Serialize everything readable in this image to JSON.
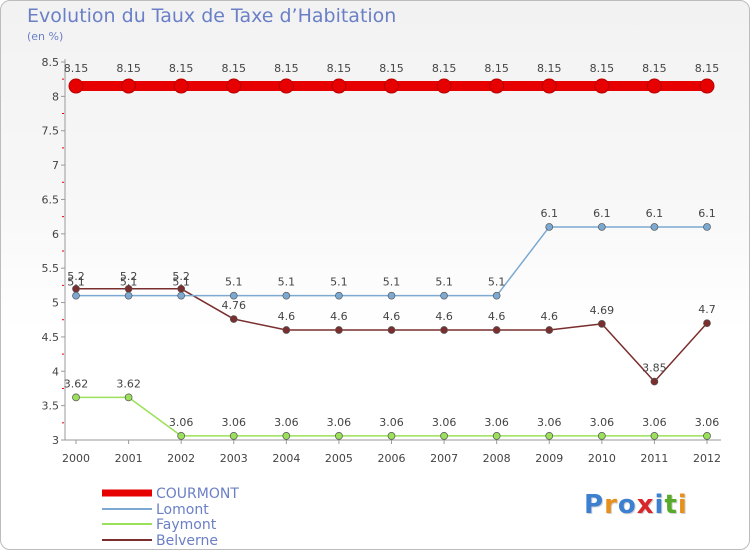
{
  "title": "Evolution du Taux de Taxe d’Habitation",
  "subtitle": "(en %)",
  "logo": {
    "text": "Proxiti",
    "letters": [
      "P",
      "r",
      "o",
      "x",
      "i",
      "t",
      "i"
    ],
    "colors": [
      "#3d7fd0",
      "#e8901c",
      "#3d7fd0",
      "#d8262a",
      "#3d7fd0",
      "#57aa2a",
      "#e8901c"
    ]
  },
  "chart_data": {
    "type": "line",
    "title": "Evolution du Taux de Taxe d’Habitation",
    "ylabel": "(en %)",
    "xlabel": "",
    "x": [
      "2000",
      "2001",
      "2002",
      "2003",
      "2004",
      "2005",
      "2006",
      "2007",
      "2008",
      "2009",
      "2010",
      "2011",
      "2012"
    ],
    "ylim": [
      3,
      8.5
    ],
    "yticks": [
      "3",
      "3.5",
      "4",
      "4.5",
      "5",
      "5.5",
      "6",
      "6.5",
      "7",
      "7.5",
      "8",
      "8.5"
    ],
    "grid": false,
    "legend_position": "bottom-left",
    "series": [
      {
        "name": "COURMONT",
        "color": "#e60000",
        "values": [
          8.15,
          8.15,
          8.15,
          8.15,
          8.15,
          8.15,
          8.15,
          8.15,
          8.15,
          8.15,
          8.15,
          8.15,
          8.15
        ],
        "labels": [
          "8.15",
          "8.15",
          "8.15",
          "8.15",
          "8.15",
          "8.15",
          "8.15",
          "8.15",
          "8.15",
          "8.15",
          "8.15",
          "8.15",
          "8.15"
        ]
      },
      {
        "name": "Lomont",
        "color": "#7ba9d2",
        "values": [
          5.1,
          5.1,
          5.1,
          5.1,
          5.1,
          5.1,
          5.1,
          5.1,
          5.1,
          6.1,
          6.1,
          6.1,
          6.1
        ],
        "labels": [
          "5.1",
          "5.1",
          "5.1",
          "5.1",
          "5.1",
          "5.1",
          "5.1",
          "5.1",
          "5.1",
          "6.1",
          "6.1",
          "6.1",
          "6.1"
        ]
      },
      {
        "name": "Faymont",
        "color": "#9be05a",
        "values": [
          3.62,
          3.62,
          3.06,
          3.06,
          3.06,
          3.06,
          3.06,
          3.06,
          3.06,
          3.06,
          3.06,
          3.06,
          3.06
        ],
        "labels": [
          "3.62",
          "3.62",
          "3.06",
          "3.06",
          "3.06",
          "3.06",
          "3.06",
          "3.06",
          "3.06",
          "3.06",
          "3.06",
          "3.06",
          "3.06"
        ]
      },
      {
        "name": "Belverne",
        "color": "#7a2e2e",
        "values": [
          5.2,
          5.2,
          5.2,
          4.76,
          4.6,
          4.6,
          4.6,
          4.6,
          4.6,
          4.6,
          4.69,
          3.85,
          4.7
        ],
        "labels": [
          "5.2",
          "5.2",
          "5.2",
          "4.76",
          "4.6",
          "4.6",
          "4.6",
          "4.6",
          "4.6",
          "4.6",
          "4.69",
          "3.85",
          "4.7"
        ]
      }
    ]
  }
}
